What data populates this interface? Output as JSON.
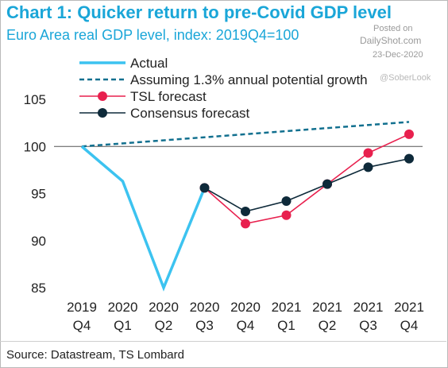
{
  "title": "Chart 1: Quicker return to pre-Covid GDP level",
  "subtitle": "Euro Area real GDP level, index: 2019Q4=100",
  "source": "Source: Datastream, TS Lombard",
  "watermark": {
    "posted": "Posted on",
    "site": "DailyShot.com",
    "date": "23-Dec-2020",
    "owner": "@SoberLook"
  },
  "chart_data": {
    "type": "line",
    "categories": [
      [
        "2019",
        "Q4"
      ],
      [
        "2020",
        "Q1"
      ],
      [
        "2020",
        "Q2"
      ],
      [
        "2020",
        "Q3"
      ],
      [
        "2020",
        "Q4"
      ],
      [
        "2021",
        "Q1"
      ],
      [
        "2021",
        "Q2"
      ],
      [
        "2021",
        "Q3"
      ],
      [
        "2021",
        "Q4"
      ]
    ],
    "ylim": [
      85,
      105
    ],
    "yticks": [
      85,
      90,
      95,
      100,
      105
    ],
    "reference_line": 100,
    "grid": false,
    "legend_position": "top-left",
    "series": [
      {
        "name": "Actual",
        "style": "solid-thick",
        "color": "#3cc3f0",
        "x": [
          0,
          1,
          2,
          3
        ],
        "values": [
          100,
          96.3,
          85.0,
          95.6
        ]
      },
      {
        "name": "Assuming 1.3% annual potential growth",
        "style": "dashed",
        "color": "#12708f",
        "x": [
          0,
          8
        ],
        "values": [
          100,
          102.6
        ]
      },
      {
        "name": "TSL forecast",
        "style": "line-marker",
        "color": "#e8204e",
        "x": [
          3,
          4,
          5,
          6,
          7,
          8
        ],
        "values": [
          95.6,
          91.8,
          92.7,
          96.0,
          99.3,
          101.3
        ]
      },
      {
        "name": "Consensus forecast",
        "style": "line-marker",
        "color": "#0e2a3a",
        "x": [
          3,
          4,
          5,
          6,
          7,
          8
        ],
        "values": [
          95.6,
          93.1,
          94.2,
          96.0,
          97.8,
          98.7
        ]
      }
    ]
  }
}
